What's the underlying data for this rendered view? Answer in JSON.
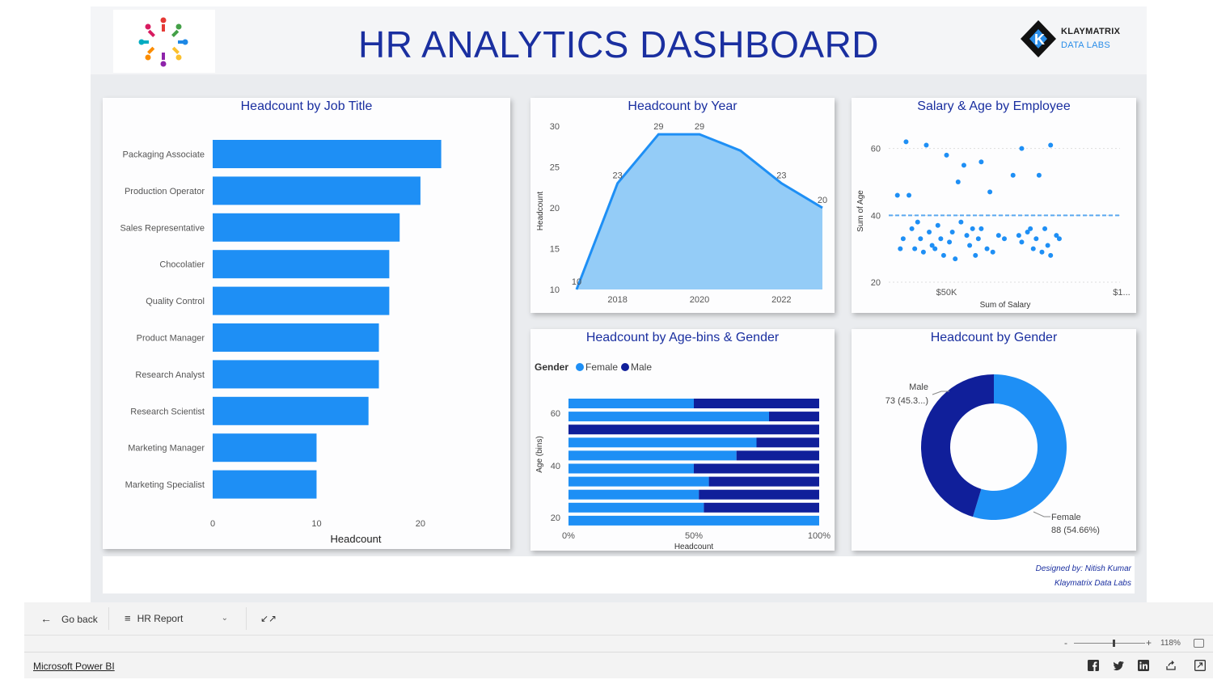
{
  "header": {
    "title": "HR ANALYTICS DASHBOARD",
    "brand_line1": "KLAYMATRIX",
    "brand_line2": "DATA LABS"
  },
  "colors": {
    "accent": "#1a2fa0",
    "female": "#1e8ff5",
    "male": "#101f9a",
    "area": "#8ec9f7"
  },
  "job_title_chart": {
    "title": "Headcount by Job Title",
    "type": "bar",
    "categories": [
      "Packaging Associate",
      "Production Operator",
      "Sales Representative",
      "Chocolatier",
      "Quality Control",
      "Product Manager",
      "Research Analyst",
      "Research Scientist",
      "Marketing Manager",
      "Marketing Specialist"
    ],
    "values": [
      22,
      20,
      18,
      17,
      17,
      16,
      16,
      15,
      10,
      10
    ],
    "xlabel": "Headcount",
    "xticks": [
      "0",
      "10",
      "20"
    ],
    "xlim": [
      0,
      26
    ]
  },
  "year_chart": {
    "title": "Headcount by Year",
    "type": "area",
    "x": [
      2017,
      2018,
      2019,
      2020,
      2021,
      2022,
      2023
    ],
    "values": [
      10,
      23,
      29,
      29,
      27,
      23,
      20
    ],
    "labels": [
      "10",
      "23",
      "29",
      "29",
      "",
      "23",
      "20"
    ],
    "ylabel": "Headcount",
    "yticks": [
      "10",
      "15",
      "20",
      "25",
      "30"
    ],
    "xticks": [
      "2018",
      "2020",
      "2022"
    ],
    "ylim": [
      10,
      30
    ]
  },
  "salary_chart": {
    "title": "Salary & Age by Employee",
    "type": "scatter",
    "xlabel": "Sum of Salary",
    "ylabel": "Sum of Age",
    "xticks": [
      "$50K",
      "$1..."
    ],
    "yticks": [
      "20",
      "40",
      "60"
    ],
    "ylim": [
      20,
      65
    ],
    "xlim": [
      30000,
      110000
    ],
    "reference_line_y": 40,
    "points": [
      [
        36000,
        62
      ],
      [
        43000,
        61
      ],
      [
        56000,
        55
      ],
      [
        76000,
        60
      ],
      [
        86000,
        61
      ],
      [
        50000,
        58
      ],
      [
        62000,
        56
      ],
      [
        73000,
        52
      ],
      [
        54000,
        50
      ],
      [
        65000,
        47
      ],
      [
        33000,
        46
      ],
      [
        37000,
        46
      ],
      [
        82000,
        52
      ],
      [
        55000,
        38
      ],
      [
        62000,
        36
      ],
      [
        48000,
        33
      ],
      [
        44000,
        35
      ],
      [
        58000,
        31
      ],
      [
        68000,
        34
      ],
      [
        39000,
        30
      ],
      [
        42000,
        29
      ],
      [
        51000,
        32
      ],
      [
        60000,
        28
      ],
      [
        35000,
        33
      ],
      [
        47000,
        37
      ],
      [
        53000,
        27
      ],
      [
        64000,
        30
      ],
      [
        45000,
        31
      ],
      [
        70000,
        33
      ],
      [
        38000,
        36
      ],
      [
        57000,
        34
      ],
      [
        49000,
        28
      ],
      [
        41000,
        33
      ],
      [
        66000,
        29
      ],
      [
        34000,
        30
      ],
      [
        61000,
        33
      ],
      [
        52000,
        35
      ],
      [
        46000,
        30
      ],
      [
        40000,
        38
      ],
      [
        59000,
        36
      ],
      [
        78000,
        35
      ],
      [
        81000,
        33
      ],
      [
        85000,
        31
      ],
      [
        88000,
        34
      ],
      [
        76000,
        32
      ],
      [
        83000,
        29
      ],
      [
        79000,
        36
      ],
      [
        86000,
        28
      ],
      [
        75000,
        34
      ],
      [
        89000,
        33
      ],
      [
        80000,
        30
      ],
      [
        84000,
        36
      ]
    ]
  },
  "age_gender_chart": {
    "title": "Headcount by Age-bins & Gender",
    "type": "bar",
    "legend_title": "Gender",
    "legend": [
      "Female",
      "Male"
    ],
    "ylabel": "Age (bins)",
    "xlabel": "Headcount",
    "yticks": [
      "20",
      "40",
      "60"
    ],
    "xticks": [
      "0%",
      "50%",
      "100%"
    ],
    "series": [
      {
        "name": "Female",
        "values": [
          0.5,
          0.8,
          0.0,
          0.75,
          0.67,
          0.5,
          0.56,
          0.52,
          0.54,
          1.0
        ]
      },
      {
        "name": "Male",
        "values": [
          0.5,
          0.2,
          1.0,
          0.25,
          0.33,
          0.5,
          0.44,
          0.48,
          0.46,
          0.0
        ]
      }
    ]
  },
  "gender_chart": {
    "title": "Headcount by Gender",
    "type": "pie",
    "slices": [
      {
        "name": "Female",
        "value": 88,
        "label_line1": "Female",
        "label_line2": "88 (54.66%)"
      },
      {
        "name": "Male",
        "value": 73,
        "label_line1": "Male",
        "label_line2": "73 (45.3...)"
      }
    ]
  },
  "credits": {
    "line1": "Designed by: Nitish Kumar",
    "line2": "Klaymatrix Data Labs"
  },
  "nav": {
    "go_back": "Go back",
    "report": "HR Report"
  },
  "zoom": {
    "level": "118%",
    "minus": "-",
    "plus": "+",
    "slider_value": 0.55
  },
  "footer": {
    "link": "Microsoft Power BI"
  }
}
